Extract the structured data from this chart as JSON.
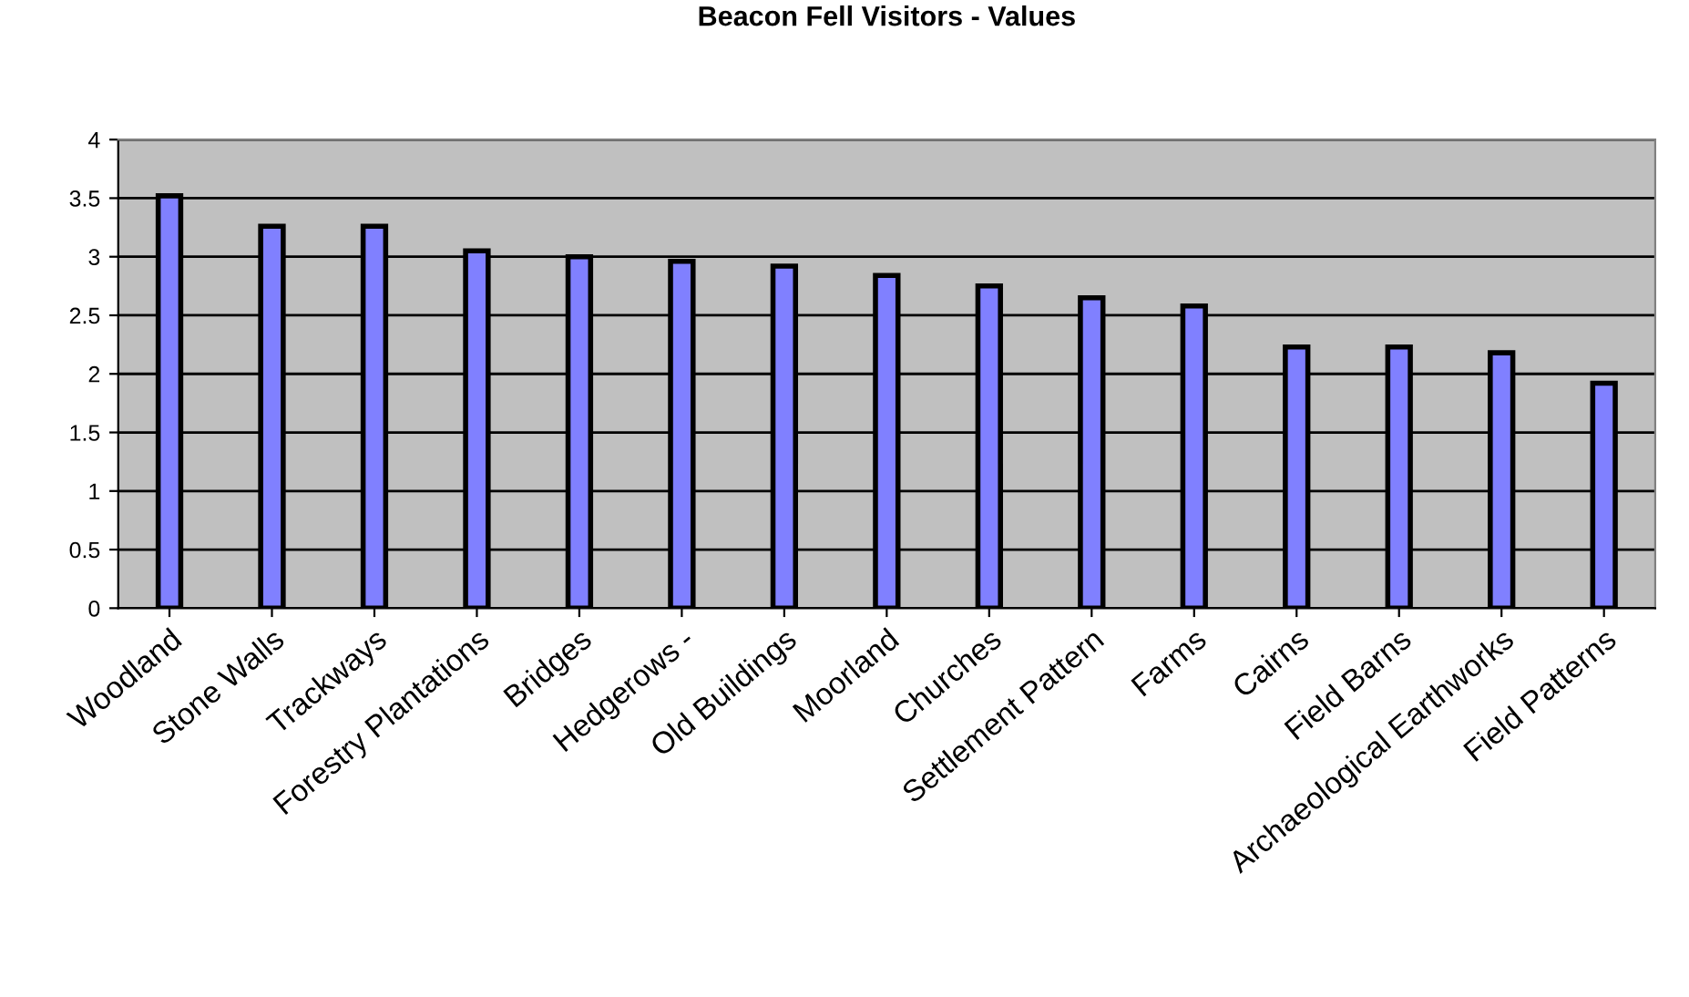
{
  "chart_data": {
    "type": "bar",
    "title": "Beacon Fell Visitors - Values",
    "categories": [
      "Woodland",
      "Stone Walls",
      "Trackways",
      "Forestry Plantations",
      "Bridges",
      "Hedgerows -",
      "Old Buildings",
      "Moorland",
      "Churches",
      "Settlement Pattern",
      "Farms",
      "Cairns",
      "Field Barns",
      "Archaeological Earthworks",
      "Field Patterns"
    ],
    "values": [
      3.52,
      3.26,
      3.26,
      3.05,
      3.0,
      2.96,
      2.92,
      2.84,
      2.75,
      2.65,
      2.58,
      2.23,
      2.23,
      2.18,
      1.92
    ],
    "color": "#8080ff",
    "ylim": [
      0,
      4
    ],
    "yticks": [
      0,
      0.5,
      1,
      1.5,
      2,
      2.5,
      3,
      3.5,
      4
    ],
    "grid": "y"
  }
}
